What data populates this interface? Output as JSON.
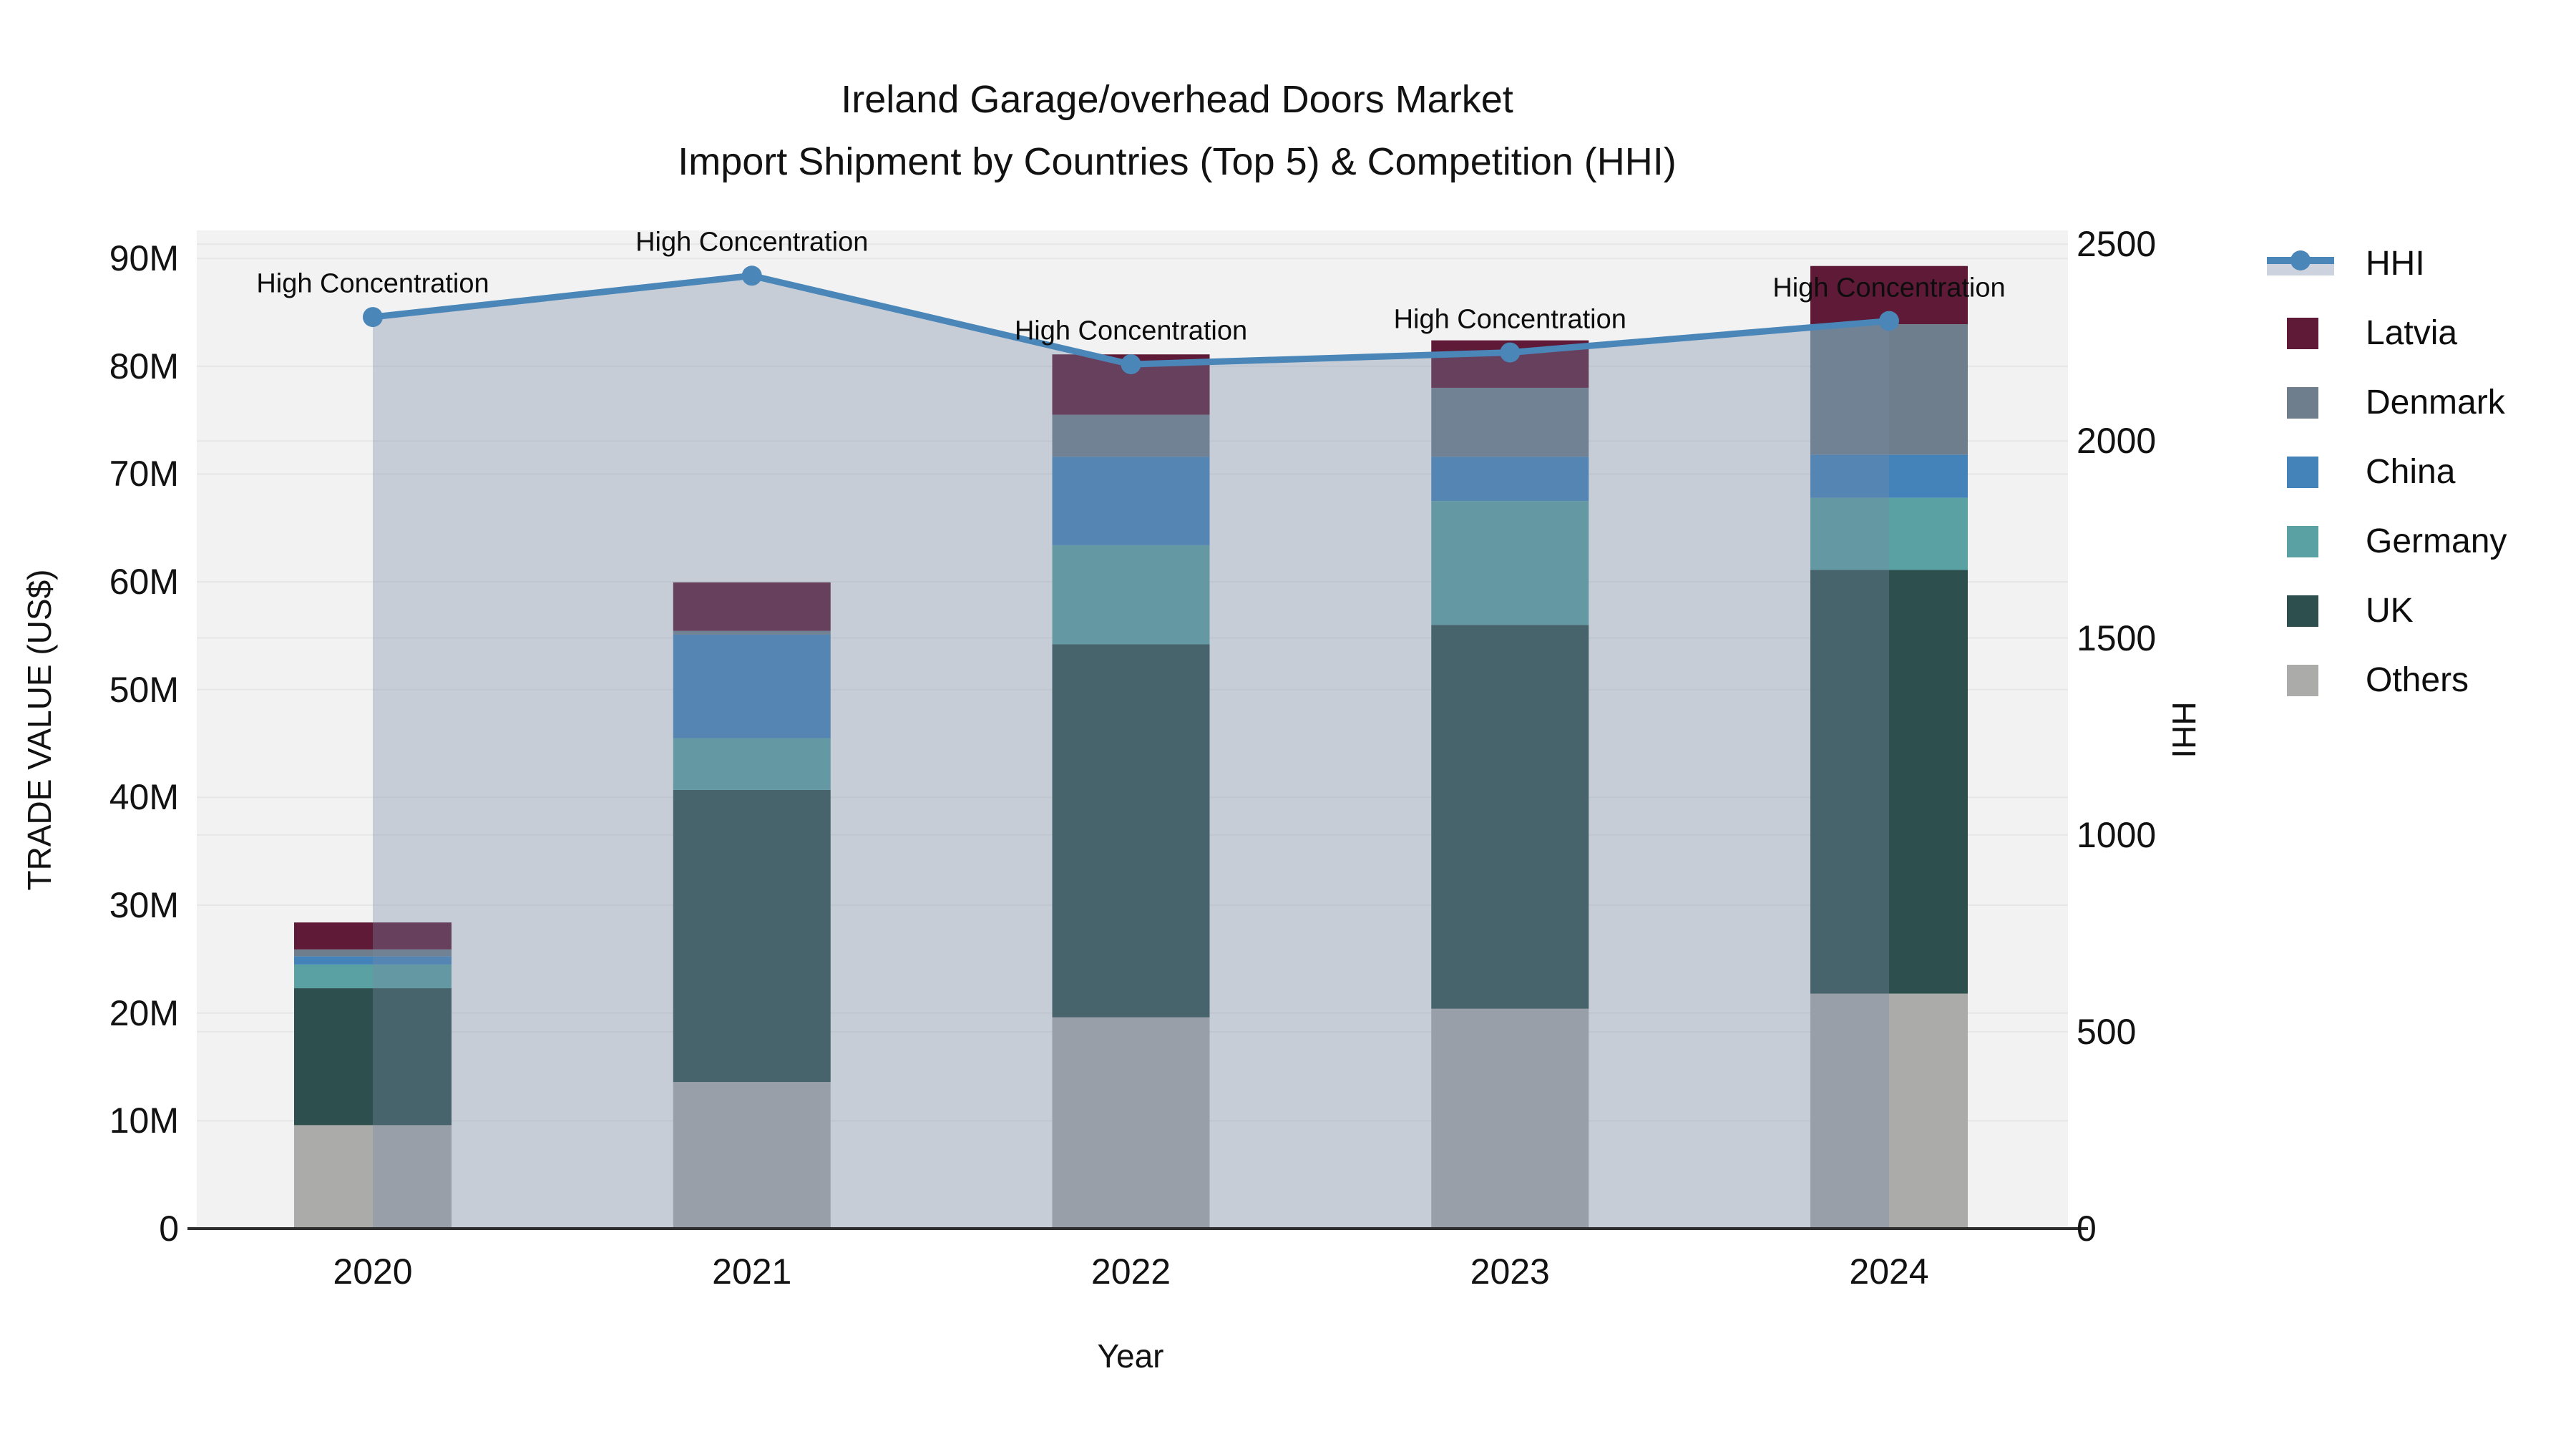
{
  "title": {
    "line1": "Ireland Garage/overhead Doors Market",
    "line2": "Import Shipment by Countries (Top 5) & Competition (HHI)"
  },
  "axes": {
    "x": {
      "label": "Year"
    },
    "y_left": {
      "label": "TRADE VALUE (US$)",
      "tick_values": [
        0,
        10,
        20,
        30,
        40,
        50,
        60,
        70,
        80,
        90
      ],
      "tick_labels": [
        "0",
        "10M",
        "20M",
        "30M",
        "40M",
        "50M",
        "60M",
        "70M",
        "80M",
        "90M"
      ],
      "range": [
        0,
        92.6
      ],
      "unit": "million US$"
    },
    "y_right": {
      "label": "HHI",
      "tick_values": [
        0,
        500,
        1000,
        1500,
        2000,
        2500
      ],
      "tick_labels": [
        "0",
        "500",
        "1000",
        "1500",
        "2000",
        "2500"
      ],
      "range": [
        0,
        2535
      ]
    }
  },
  "chart_data": {
    "type": "bar",
    "stacked": true,
    "grid": true,
    "legend_position": "right",
    "categories": [
      "2020",
      "2021",
      "2022",
      "2023",
      "2024"
    ],
    "series": [
      {
        "name": "Others",
        "color": "#ABABA9",
        "values": [
          9.6,
          13.6,
          19.6,
          20.4,
          21.8
        ]
      },
      {
        "name": "UK",
        "color": "#2D4F4E",
        "values": [
          12.7,
          27.1,
          34.6,
          35.6,
          39.3
        ]
      },
      {
        "name": "Germany",
        "color": "#5AA1A3",
        "values": [
          2.2,
          4.8,
          9.2,
          11.5,
          6.7
        ]
      },
      {
        "name": "China",
        "color": "#4383BA",
        "values": [
          0.75,
          9.6,
          8.2,
          4.1,
          4.0
        ]
      },
      {
        "name": "Denmark",
        "color": "#6F7E8D",
        "values": [
          0.65,
          0.35,
          3.9,
          6.4,
          12.1
        ]
      },
      {
        "name": "Latvia",
        "color": "#5E1A36",
        "values": [
          2.5,
          4.5,
          5.6,
          4.4,
          5.4
        ]
      }
    ],
    "totals": [
      28.4,
      59.95,
      81.1,
      82.4,
      89.3
    ],
    "line_series": {
      "name": "HHI",
      "axis": "right",
      "color": "#4A86B8",
      "area_fill_color": "rgba(119,137,167,0.35)",
      "values": [
        2315,
        2420,
        2195,
        2225,
        2305
      ]
    },
    "annotations": [
      "High Concentration",
      "High Concentration",
      "High Concentration",
      "High Concentration",
      "High Concentration"
    ],
    "legend_order": [
      "HHI",
      "Latvia",
      "Denmark",
      "China",
      "Germany",
      "UK",
      "Others"
    ]
  }
}
